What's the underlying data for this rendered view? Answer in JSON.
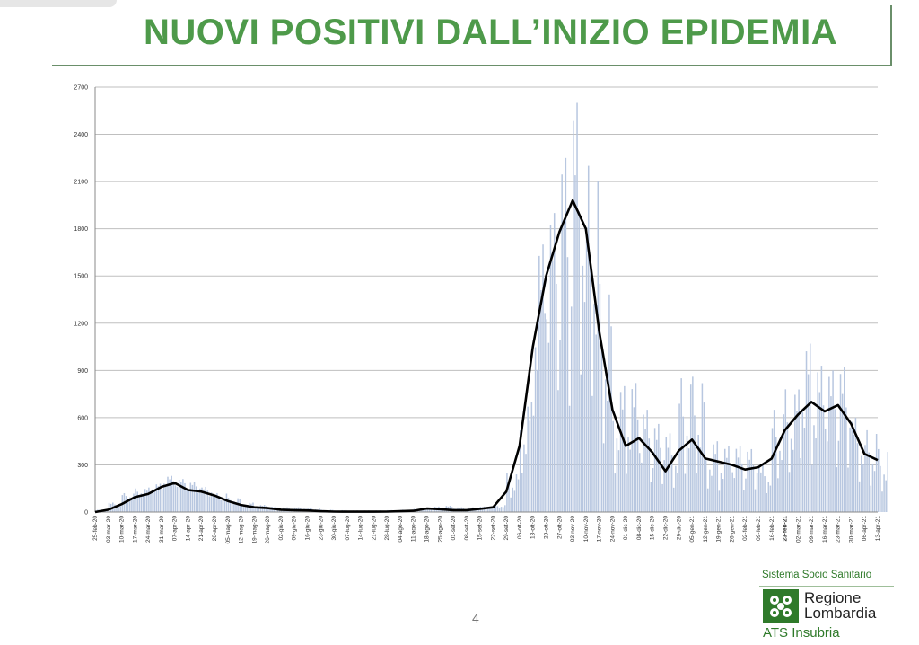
{
  "title": "NUOVI POSITIVI DALL’INIZIO EPIDEMIA",
  "page_number": "4",
  "logo": {
    "top_text": "Sistema Socio Sanitario",
    "name_line1": "Regione",
    "name_line2": "Lombardia",
    "sub": "ATS Insubria"
  },
  "colors": {
    "title": "#4e9a4a",
    "bars": "#b8c7e0",
    "line": "#000000",
    "grid": "#bfbfbf",
    "logo_green": "#2f7a2a"
  },
  "chart_data": {
    "type": "bar",
    "ylim": [
      0,
      2700
    ],
    "yticks": [
      0,
      300,
      600,
      900,
      1200,
      1500,
      1800,
      2100,
      2400,
      2700
    ],
    "x_start": "25-feb-20",
    "x_end": "13-apr-21",
    "xtick_labels": [
      "25-feb-20",
      "03-mar-20",
      "10-mar-20",
      "17-mar-20",
      "24-mar-20",
      "31-mar-20",
      "07-apr-20",
      "14-apr-20",
      "21-apr-20",
      "28-apr-20",
      "05-mag-20",
      "12-mag-20",
      "19-mag-20",
      "26-mag-20",
      "02-giu-20",
      "09-giu-20",
      "16-giu-20",
      "23-giu-20",
      "30-giu-20",
      "07-lug-20",
      "14-lug-20",
      "21-lug-20",
      "28-lug-20",
      "04-ago-20",
      "11-ago-20",
      "18-ago-20",
      "25-ago-20",
      "01-set-20",
      "08-set-20",
      "15-set-20",
      "22-set-20",
      "29-set-20",
      "06-ott-20",
      "13-ott-20",
      "20-ott-20",
      "27-ott-20",
      "03-nov-20",
      "10-nov-20",
      "17-nov-20",
      "24-nov-20",
      "01-dic-20",
      "08-dic-20",
      "15-dic-20",
      "22-dic-20",
      "29-dic-20",
      "05-gen-21",
      "12-gen-21",
      "19-gen-21",
      "26-gen-21",
      "02-feb-21",
      "09-feb-21",
      "16-feb-21",
      "23-feb-21",
      "02-mar-21",
      "09-mar-21",
      "16-mar-21",
      "23-mar-21",
      "30-mar-21",
      "06-apr-21",
      "13-apr-21"
    ],
    "bold_tick": "23-feb-21",
    "series": [
      {
        "kind": "bar",
        "values_weekly_peak": [
          15,
          60,
          120,
          150,
          180,
          230,
          210,
          190,
          160,
          120,
          90,
          60,
          45,
          35,
          30,
          30,
          25,
          15,
          12,
          10,
          10,
          10,
          12,
          15,
          20,
          35,
          40,
          30,
          30,
          35,
          45,
          250,
          700,
          1700,
          1900,
          2250,
          2600,
          2200,
          1450,
          800,
          820,
          650,
          560,
          500,
          850,
          860,
          450,
          420,
          420,
          400,
          300,
          650,
          780,
          1070,
          930,
          900,
          920,
          600,
          520,
          400
        ],
        "values_weekly_low": [
          5,
          20,
          60,
          80,
          100,
          120,
          120,
          100,
          80,
          60,
          40,
          25,
          20,
          15,
          10,
          10,
          8,
          5,
          5,
          3,
          3,
          3,
          5,
          5,
          8,
          10,
          15,
          12,
          12,
          15,
          20,
          40,
          100,
          250,
          400,
          150,
          300,
          250,
          100,
          60,
          50,
          40,
          50,
          40,
          40,
          40,
          50,
          40,
          50,
          60,
          60,
          70,
          80,
          100,
          90,
          80,
          70,
          60,
          50,
          40
        ]
      },
      {
        "kind": "line",
        "name": "",
        "values": [
          0,
          15,
          50,
          95,
          115,
          160,
          185,
          140,
          130,
          105,
          70,
          45,
          30,
          25,
          15,
          12,
          10,
          5,
          3,
          2,
          2,
          2,
          3,
          5,
          8,
          22,
          18,
          12,
          12,
          20,
          30,
          130,
          420,
          1050,
          1500,
          1780,
          1980,
          1800,
          1150,
          650,
          420,
          470,
          380,
          260,
          390,
          460,
          340,
          320,
          300,
          270,
          285,
          340,
          520,
          620,
          700,
          640,
          680,
          560,
          370,
          330
        ]
      }
    ]
  }
}
